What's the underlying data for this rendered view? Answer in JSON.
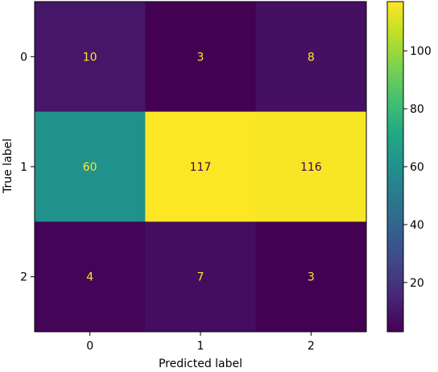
{
  "chart_data": {
    "type": "heatmap",
    "title": "",
    "xlabel": "Predicted label",
    "ylabel": "True label",
    "x_categories": [
      "0",
      "1",
      "2"
    ],
    "y_categories": [
      "0",
      "1",
      "2"
    ],
    "values": [
      [
        10,
        3,
        8
      ],
      [
        60,
        117,
        116
      ],
      [
        4,
        7,
        3
      ]
    ],
    "colorbar": {
      "range": [
        3,
        117
      ],
      "ticks": [
        "20",
        "40",
        "60",
        "80",
        "100"
      ],
      "tick_values": [
        20,
        40,
        60,
        80,
        100
      ]
    },
    "colormap": "viridis",
    "grid": false,
    "annotation_colors": {
      "light": "#fde725",
      "dark": "#440154"
    }
  }
}
